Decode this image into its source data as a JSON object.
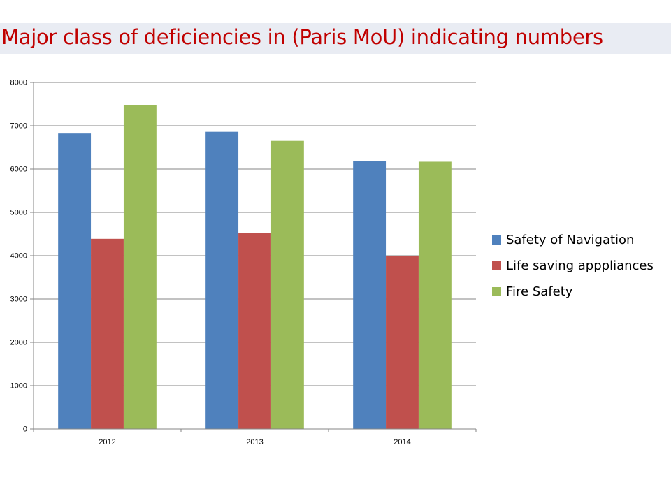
{
  "page": {
    "title": "Major class of deficiencies  in (Paris MoU) indicating numbers"
  },
  "chart_data": {
    "type": "bar",
    "title": "Major class of deficiencies  in (Paris MoU) indicating numbers",
    "categories": [
      "2012",
      "2013",
      "2014"
    ],
    "series": [
      {
        "name": "Safety of Navigation",
        "color": "#4f81bd",
        "values": [
          6820,
          6860,
          6180
        ]
      },
      {
        "name": "Life saving apppliances",
        "color": "#c0504d",
        "values": [
          4390,
          4520,
          4000
        ]
      },
      {
        "name": "Fire Safety",
        "color": "#9bbb59",
        "values": [
          7470,
          6650,
          6170
        ]
      }
    ],
    "ylim": [
      0,
      8000
    ],
    "yticks": [
      "0",
      "1000",
      "2000",
      "3000",
      "4000",
      "5000",
      "6000",
      "7000",
      "8000"
    ],
    "grid": true,
    "legend_position": "right",
    "xlabel": "",
    "ylabel": ""
  }
}
